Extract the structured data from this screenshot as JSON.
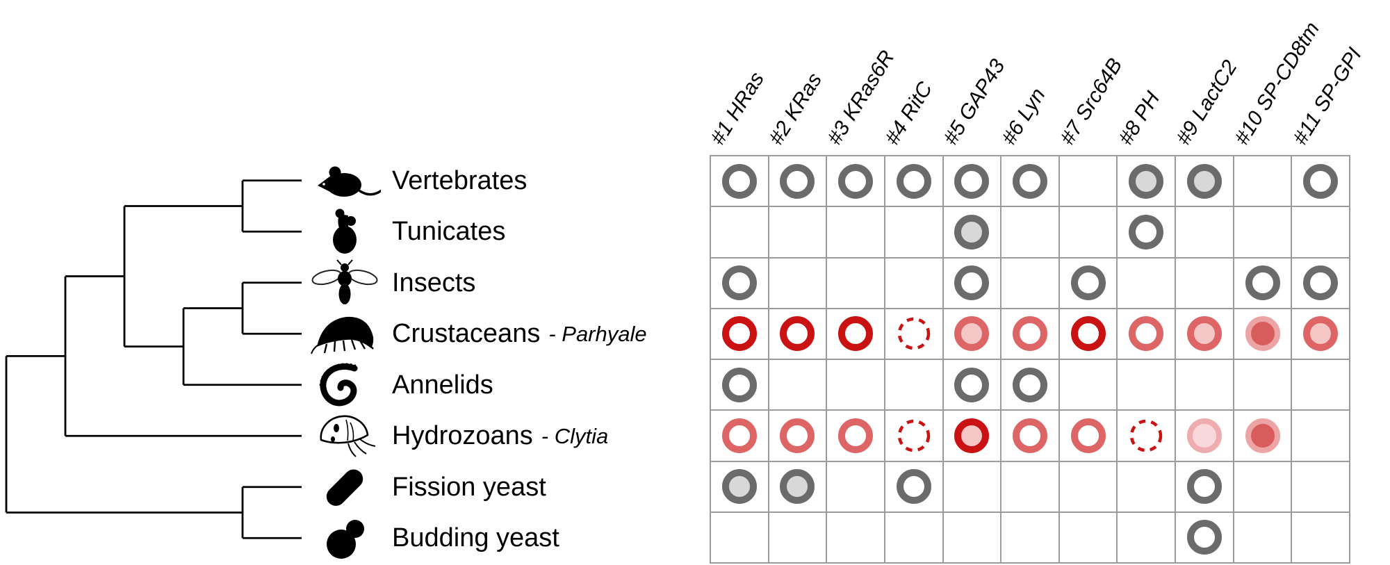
{
  "figure": {
    "columns": [
      "#1 HRas",
      "#2 KRas",
      "#3 KRas6R",
      "#4 RitC",
      "#5 GAP43",
      "#6 Lyn",
      "#7 Src64B",
      "#8 PH",
      "#9 LactC2",
      "#10 SP-CD8tm",
      "#11 SP-GPI"
    ],
    "taxa": [
      {
        "label": "Vertebrates",
        "suffix": "",
        "icon": "mouse-icon"
      },
      {
        "label": "Tunicates",
        "suffix": "",
        "icon": "tunicate-icon"
      },
      {
        "label": "Insects",
        "suffix": "",
        "icon": "fly-icon"
      },
      {
        "label": "Crustaceans",
        "suffix": "- Parhyale",
        "icon": "amphipod-icon"
      },
      {
        "label": "Annelids",
        "suffix": "",
        "icon": "annelid-icon"
      },
      {
        "label": "Hydrozoans",
        "suffix": "- Clytia",
        "icon": "jellyfish-icon"
      },
      {
        "label": "Fission yeast",
        "suffix": "",
        "icon": "fission-yeast-icon"
      },
      {
        "label": "Budding yeast",
        "suffix": "",
        "icon": "budding-yeast-icon"
      }
    ],
    "tree": {
      "children": [
        {
          "children": [
            {
              "children": [
                {
                  "children": [
                    {
                      "leaf": 0
                    },
                    {
                      "leaf": 1
                    }
                  ]
                },
                {
                  "children": [
                    {
                      "children": [
                        {
                          "leaf": 2
                        },
                        {
                          "leaf": 3
                        }
                      ]
                    },
                    {
                      "leaf": 4
                    }
                  ]
                }
              ]
            },
            {
              "leaf": 5
            }
          ]
        },
        {
          "children": [
            {
              "leaf": 6
            },
            {
              "leaf": 7
            }
          ]
        }
      ]
    },
    "matrix": [
      [
        "gray_ring",
        "gray_ring",
        "gray_ring",
        "gray_ring",
        "gray_ring",
        "gray_ring",
        "",
        "gray_filled",
        "gray_filled",
        "",
        "gray_ring"
      ],
      [
        "",
        "",
        "",
        "",
        "gray_filled",
        "",
        "",
        "gray_ring",
        "",
        "",
        ""
      ],
      [
        "gray_ring",
        "",
        "",
        "",
        "gray_ring",
        "",
        "gray_ring",
        "",
        "",
        "gray_ring",
        "gray_ring"
      ],
      [
        "red_ring",
        "red_ring",
        "red_ring",
        "red_dashed",
        "salmon_pink",
        "salmon_ring",
        "red_ring",
        "salmon_ring",
        "salmon_pink",
        "pink_dark",
        "salmon_pink"
      ],
      [
        "gray_ring",
        "",
        "",
        "",
        "gray_ring",
        "gray_ring",
        "",
        "",
        "",
        "",
        ""
      ],
      [
        "salmon_ring",
        "salmon_ring",
        "salmon_ring",
        "red_dashed",
        "red_pink",
        "salmon_ring",
        "salmon_ring",
        "red_dashed",
        "pale_pink",
        "pink_dark",
        ""
      ],
      [
        "gray_filled",
        "gray_filled",
        "",
        "gray_ring",
        "",
        "",
        "",
        "",
        "gray_ring",
        "",
        ""
      ],
      [
        "",
        "",
        "",
        "",
        "",
        "",
        "",
        "",
        "gray_ring",
        "",
        ""
      ]
    ],
    "markers": {
      "gray_ring": {
        "stroke": "#6b6b6b",
        "fill": "#ffffff",
        "stroke_width": 10,
        "radius": 20,
        "dash": ""
      },
      "gray_filled": {
        "stroke": "#6b6b6b",
        "fill": "#d8d8d8",
        "stroke_width": 10,
        "radius": 20,
        "dash": ""
      },
      "red_ring": {
        "stroke": "#cb1212",
        "fill": "#ffffff",
        "stroke_width": 10,
        "radius": 20,
        "dash": ""
      },
      "red_dashed": {
        "stroke": "#cb1212",
        "fill": "none",
        "stroke_width": 4.5,
        "radius": 21,
        "dash": "9.5 8.2"
      },
      "salmon_ring": {
        "stroke": "#dd6565",
        "fill": "#ffffff",
        "stroke_width": 10,
        "radius": 20,
        "dash": ""
      },
      "salmon_pink": {
        "stroke": "#dd6565",
        "fill": "#f5c6c6",
        "stroke_width": 10,
        "radius": 20,
        "dash": ""
      },
      "red_pink": {
        "stroke": "#cb1212",
        "fill": "#f5c6c6",
        "stroke_width": 10,
        "radius": 20,
        "dash": ""
      },
      "pink_dark": {
        "stroke": "#eda4a4",
        "fill": "#d95c5c",
        "stroke_width": 8,
        "radius": 21,
        "dash": ""
      },
      "pale_pink": {
        "stroke": "#efacae",
        "fill": "#f8d8da",
        "stroke_width": 8,
        "radius": 21,
        "dash": ""
      }
    },
    "colors": {
      "grid_line": "#9b9b9b",
      "tree_line": "#000000",
      "text": "#000000",
      "background": "#ffffff"
    }
  }
}
